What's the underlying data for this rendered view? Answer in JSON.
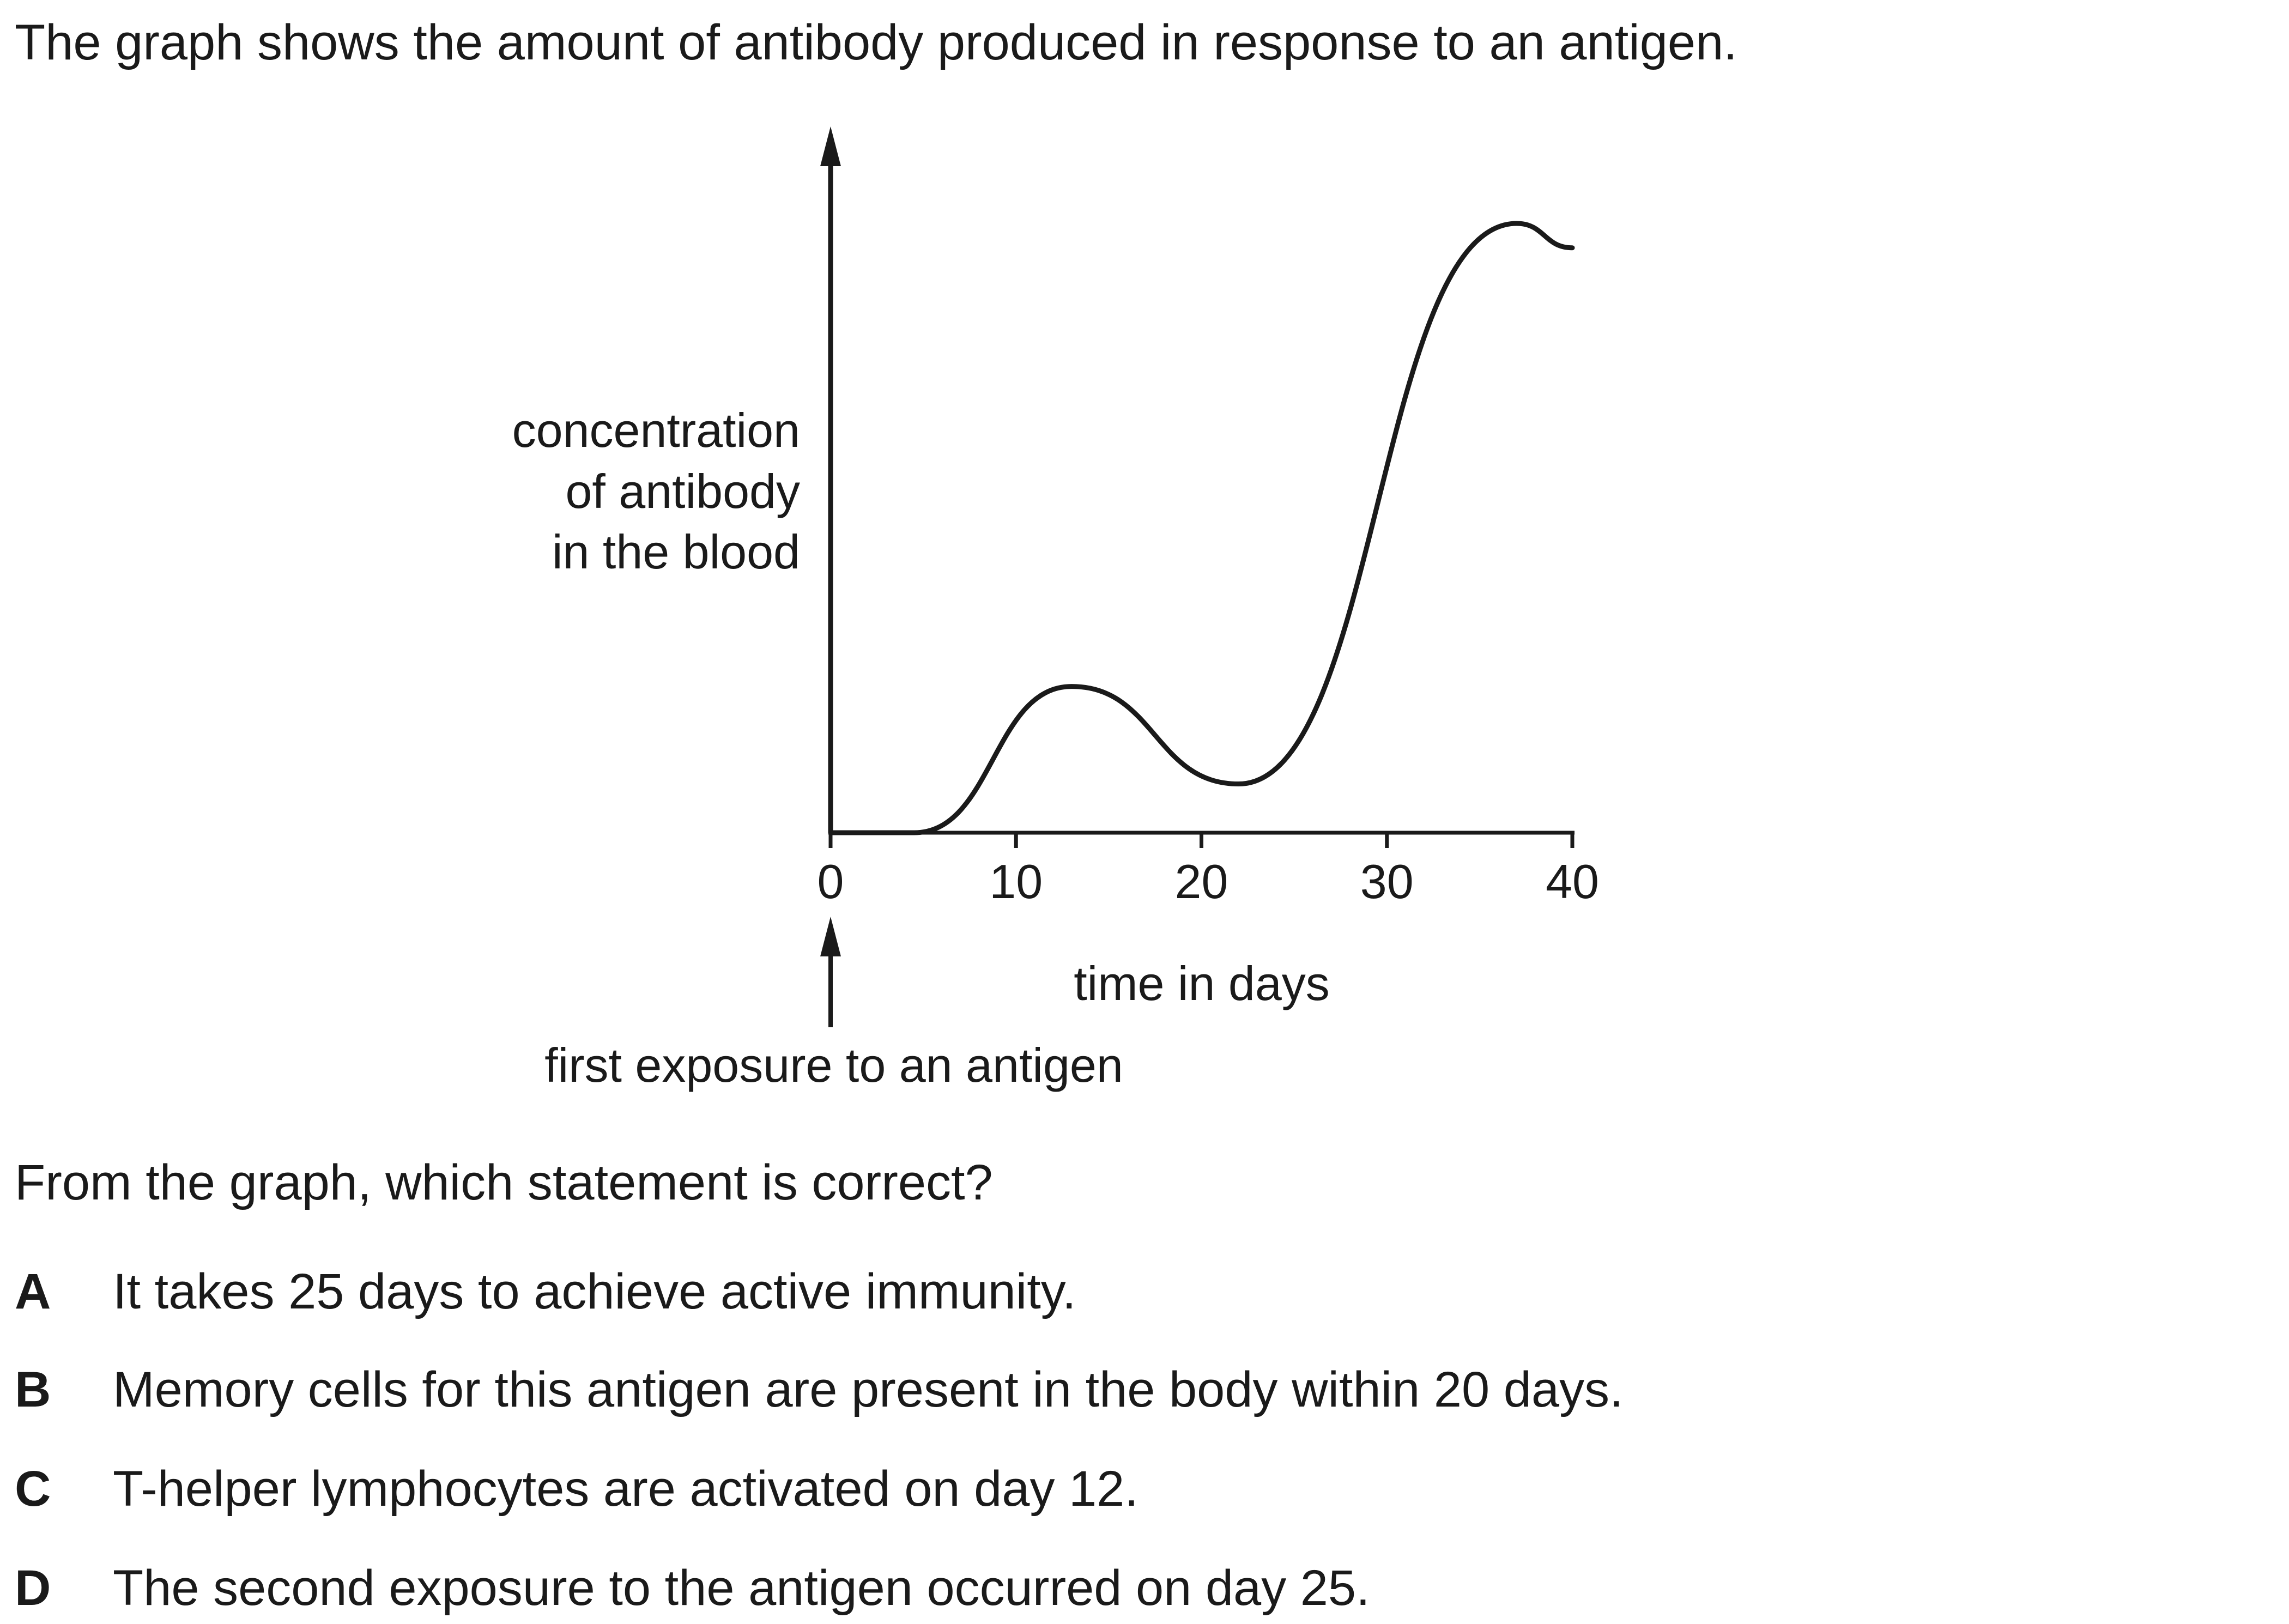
{
  "intro_text": "The graph shows the amount of antibody produced in response to an antigen.",
  "chart_data": {
    "type": "line",
    "ylabel": [
      "concentration",
      "of antibody",
      "in the blood"
    ],
    "xlabel": "time in days",
    "x_ticks": [
      "0",
      "10",
      "20",
      "30",
      "40"
    ],
    "xlim": [
      0,
      40
    ],
    "y_axis_values": "none printed",
    "annotation": "first exposure to an antigen",
    "annotation_x": 0,
    "series": [
      {
        "x": [
          0,
          4.5,
          13,
          22,
          37,
          40
        ],
        "y": [
          0,
          0,
          0.24,
          0.08,
          1.0,
          0.96
        ]
      }
    ],
    "grid": false
  },
  "question": "From the graph, which statement is correct?",
  "options": [
    {
      "letter": "A",
      "text": "It takes 25 days to achieve active immunity."
    },
    {
      "letter": "B",
      "text": "Memory cells for this antigen are present in the body within 20 days."
    },
    {
      "letter": "C",
      "text": "T-helper lymphocytes are activated on day 12."
    },
    {
      "letter": "D",
      "text": "The second exposure to the antigen occurred on day 25."
    }
  ]
}
